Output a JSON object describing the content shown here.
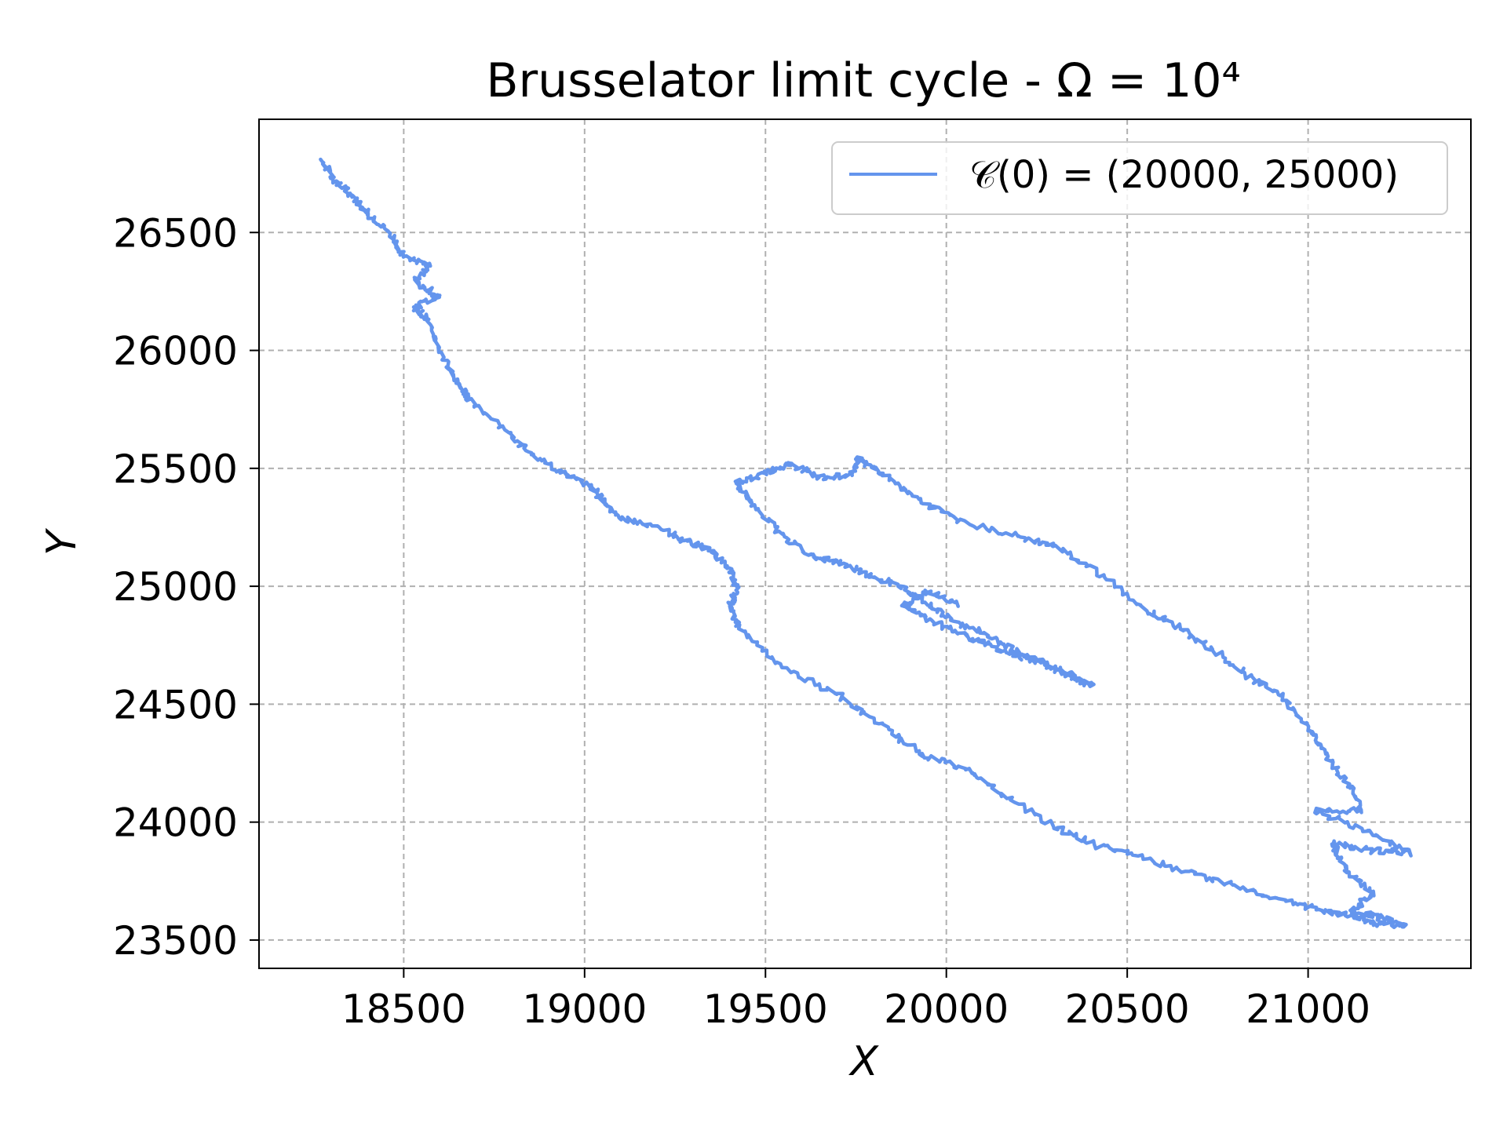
{
  "chart_data": {
    "type": "line",
    "title": "Brusselator limit cycle - Ω = 10⁴",
    "xlabel": "X",
    "ylabel": "Y",
    "xlim": [
      18100,
      21450
    ],
    "ylim": [
      23380,
      26980
    ],
    "xticks": [
      18500,
      19000,
      19500,
      20000,
      20500,
      21000
    ],
    "yticks": [
      23500,
      24000,
      24500,
      25000,
      25500,
      26000,
      26500
    ],
    "grid": true,
    "grid_style": "dashed",
    "legend_position": "top-right",
    "colors": {
      "series": "#6495ED",
      "grid": "#b0b0b0",
      "axes": "#000000"
    },
    "series": [
      {
        "name": "𝒞(0) = (20000, 25000)",
        "color": "#6495ED",
        "noise": 8,
        "path": [
          [
            20030,
            24920
          ],
          [
            19950,
            24980
          ],
          [
            19880,
            24920
          ],
          [
            19960,
            24850
          ],
          [
            20040,
            24800
          ],
          [
            20120,
            24750
          ],
          [
            20200,
            24700
          ],
          [
            20260,
            24680
          ],
          [
            20340,
            24620
          ],
          [
            20400,
            24580
          ],
          [
            20300,
            24660
          ],
          [
            20200,
            24720
          ],
          [
            20100,
            24800
          ],
          [
            20000,
            24870
          ],
          [
            19940,
            24940
          ],
          [
            19870,
            25000
          ],
          [
            19780,
            25050
          ],
          [
            19700,
            25100
          ],
          [
            19620,
            25130
          ],
          [
            19530,
            25240
          ],
          [
            19460,
            25360
          ],
          [
            19420,
            25440
          ],
          [
            19500,
            25480
          ],
          [
            19570,
            25520
          ],
          [
            19650,
            25460
          ],
          [
            19730,
            25470
          ],
          [
            19760,
            25540
          ],
          [
            19820,
            25480
          ],
          [
            19920,
            25370
          ],
          [
            20050,
            25270
          ],
          [
            20200,
            25210
          ],
          [
            20300,
            25170
          ],
          [
            20430,
            25050
          ],
          [
            20550,
            24900
          ],
          [
            20650,
            24820
          ],
          [
            20750,
            24720
          ],
          [
            20850,
            24600
          ],
          [
            20920,
            24550
          ],
          [
            21000,
            24400
          ],
          [
            21050,
            24280
          ],
          [
            21110,
            24160
          ],
          [
            21150,
            24050
          ],
          [
            21020,
            24050
          ],
          [
            21170,
            23960
          ],
          [
            21280,
            23870
          ],
          [
            21170,
            23880
          ],
          [
            21070,
            23910
          ],
          [
            21100,
            23800
          ],
          [
            21180,
            23700
          ],
          [
            21120,
            23620
          ],
          [
            21190,
            23600
          ],
          [
            21270,
            23560
          ],
          [
            21190,
            23570
          ],
          [
            21130,
            23600
          ],
          [
            21050,
            23620
          ],
          [
            20950,
            23660
          ],
          [
            20830,
            23720
          ],
          [
            20700,
            23770
          ],
          [
            20560,
            23840
          ],
          [
            20420,
            23900
          ],
          [
            20300,
            23980
          ],
          [
            20150,
            24120
          ],
          [
            20050,
            24230
          ],
          [
            19930,
            24290
          ],
          [
            19820,
            24410
          ],
          [
            19700,
            24540
          ],
          [
            19550,
            24650
          ],
          [
            19430,
            24820
          ],
          [
            19400,
            24900
          ],
          [
            19420,
            25000
          ],
          [
            19400,
            25070
          ],
          [
            19350,
            25150
          ],
          [
            19280,
            25190
          ],
          [
            19200,
            25250
          ],
          [
            19100,
            25290
          ],
          [
            19050,
            25360
          ],
          [
            19020,
            25420
          ],
          [
            18950,
            25470
          ],
          [
            18860,
            25550
          ],
          [
            18780,
            25670
          ],
          [
            18680,
            25790
          ],
          [
            18650,
            25860
          ],
          [
            18600,
            26000
          ],
          [
            18560,
            26140
          ],
          [
            18530,
            26180
          ],
          [
            18600,
            26230
          ],
          [
            18530,
            26290
          ],
          [
            18570,
            26360
          ],
          [
            18500,
            26400
          ],
          [
            18470,
            26480
          ],
          [
            18400,
            26580
          ],
          [
            18360,
            26650
          ],
          [
            18310,
            26720
          ],
          [
            18270,
            26810
          ]
        ]
      }
    ]
  }
}
